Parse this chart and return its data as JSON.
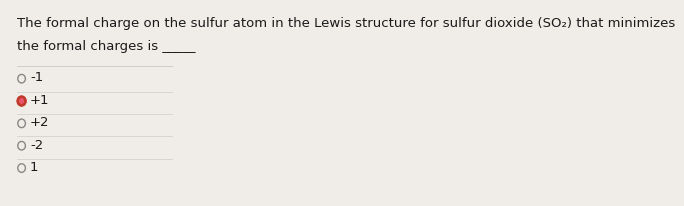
{
  "title_line1": "The formal charge on the sulfur atom in the Lewis structure for sulfur dioxide (SO₂) that minimizes",
  "title_line2": "the formal charges is _____",
  "options": [
    "-1",
    "+1",
    "+2",
    "-2",
    "1"
  ],
  "selected_index": 1,
  "background_color": "#f0ede8",
  "text_color": "#1a1a1a",
  "radio_color_normal": "#888888",
  "radio_color_selected": "#c0392b",
  "radio_fill_selected": "#e8566a",
  "font_size_title": 9.5,
  "font_size_options": 9.5,
  "divider_color": "#cccccc"
}
